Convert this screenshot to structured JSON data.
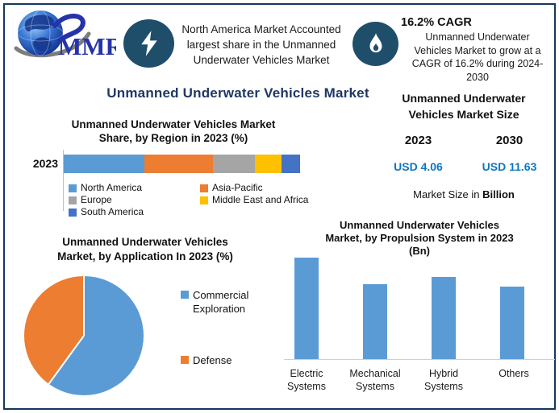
{
  "brand": {
    "name": "MMR"
  },
  "header": {
    "highlight_text": "North America Market Accounted\nlargest share in the Unmanned\nUnderwater Vehicles Market",
    "cagr_title": "16.2% CAGR",
    "cagr_text": "Unmanned Underwater\nVehicles Market to grow at a\nCAGR of 16.2% during 2024-\n2030"
  },
  "main_title": "Unmanned Underwater Vehicles Market",
  "market_size": {
    "title": "Unmanned Underwater\nVehicles Market Size",
    "years": [
      "2023",
      "2030"
    ],
    "values": [
      "USD 4.06",
      "USD 11.63"
    ],
    "note_prefix": "Market Size in ",
    "note_bold": "Billion"
  },
  "chart_data": [
    {
      "type": "bar",
      "subtype": "stacked-horizontal-100pct",
      "title": "Unmanned Underwater Vehicles Market\nShare, by Region in 2023 (%)",
      "categories": [
        "2023"
      ],
      "unit": "%",
      "xlim": [
        0,
        100
      ],
      "legend_position": "bottom",
      "segments": [
        {
          "label": "North America",
          "value": 34,
          "color": "#5B9BD5"
        },
        {
          "label": "Asia-Pacific",
          "value": 29,
          "color": "#ED7D31"
        },
        {
          "label": "Europe",
          "value": 18,
          "color": "#A5A5A5"
        },
        {
          "label": "Middle East and Africa",
          "value": 11,
          "color": "#FFC000"
        },
        {
          "label": "South America",
          "value": 8,
          "color": "#4472C4"
        }
      ]
    },
    {
      "type": "pie",
      "title": "Unmanned Underwater Vehicles\nMarket, by Application In 2023 (%)",
      "legend_position": "right",
      "slices": [
        {
          "label": "Commercial Exploration",
          "value": 60,
          "color": "#5B9BD5"
        },
        {
          "label": "Defense",
          "value": 40,
          "color": "#ED7D31"
        }
      ]
    },
    {
      "type": "bar",
      "title": "Unmanned Underwater Vehicles\nMarket, by Propulsion System in 2023\n(Bn)",
      "categories": [
        "Electric Systems",
        "Mechanical Systems",
        "Hybrid Systems",
        "Others"
      ],
      "values": [
        1.24,
        0.92,
        1.01,
        0.89
      ],
      "bar_color": "#5B9BD5",
      "ylim": [
        0,
        1.3
      ],
      "grid": false,
      "legend_position": "none"
    }
  ],
  "colors": {
    "title_navy": "#1F3864",
    "icon_navy": "#1F4E6B",
    "value_blue": "#0E76BC",
    "border_navy": "#17375E"
  }
}
